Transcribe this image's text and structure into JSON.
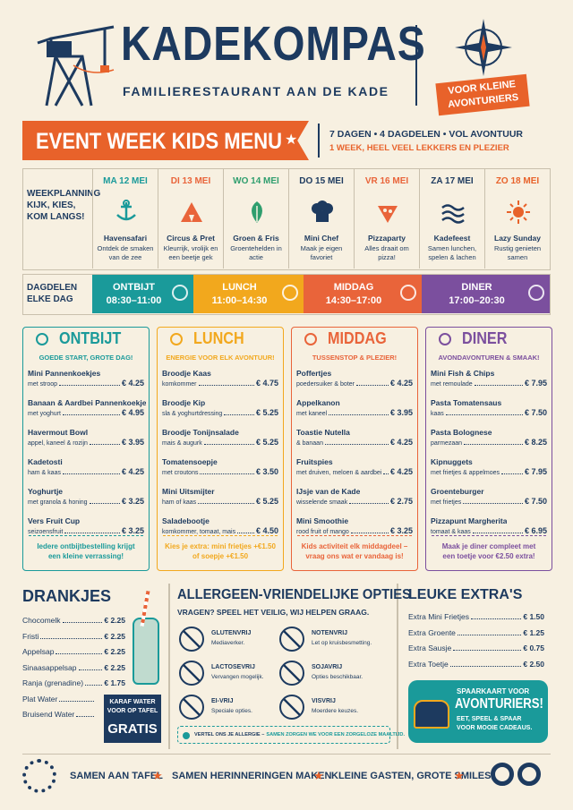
{
  "header": {
    "brand": "KADEKOMPAS",
    "tagline": "FAMILIERESTAURANT AAN DE KADE",
    "badge": [
      "VOOR KLEINE",
      "AVONTURIERS"
    ]
  },
  "banner": {
    "title": "EVENT WEEK KIDS MENU",
    "info": "7 DAGEN • 4 DAGDELEN • VOL AVONTUUR",
    "subinfo": "1 WEEK, HEEL VEEL LEKKERS EN PLEZIER"
  },
  "week": {
    "label": [
      "WEEKPLANNING",
      "KIJK, KIES,",
      "KOM LANGS!"
    ],
    "days": [
      {
        "date": "MA 12 MEI",
        "title": "Havensafari",
        "desc": "Ontdek de smaken van de zee"
      },
      {
        "date": "DI 13 MEI",
        "title": "Circus & Pret",
        "desc": "Kleurrijk, vrolijk en een beetje gek"
      },
      {
        "date": "WO 14 MEI",
        "title": "Groen & Fris",
        "desc": "Groentehelden in actie"
      },
      {
        "date": "DO 15 MEI",
        "title": "Mini Chef",
        "desc": "Maak je eigen favoriet"
      },
      {
        "date": "VR 16 MEI",
        "title": "Pizzaparty",
        "desc": "Alles draait om pizza!"
      },
      {
        "date": "ZA 17 MEI",
        "title": "Kadefeest",
        "desc": "Samen lunchen, spelen & lachen"
      },
      {
        "date": "ZO 18 MEI",
        "title": "Lazy Sunday",
        "desc": "Rustig genieten samen"
      }
    ]
  },
  "dayparts": {
    "label": [
      "DAGDELEN",
      "ELKE DAG"
    ],
    "parts": [
      {
        "name": "ONTBIJT",
        "time": "08:30–11:00"
      },
      {
        "name": "LUNCH",
        "time": "11:00–14:30"
      },
      {
        "name": "MIDDAG",
        "time": "14:30–17:00"
      },
      {
        "name": "DINER",
        "time": "17:00–20:30"
      }
    ]
  },
  "menus": [
    {
      "title": "ONTBIJT",
      "subtitle": "GOEDE START, GROTE DAG!",
      "items": [
        {
          "name": "Mini Pannenkoekjes",
          "desc": "met stroop",
          "price": "€ 4.25"
        },
        {
          "name": "Banaan & Aardbei Pannenkoekjes",
          "desc": "met yoghurt",
          "price": "€ 4.95"
        },
        {
          "name": "Havermout Bowl",
          "desc": "appel, kaneel & rozijn",
          "price": "€ 3.95"
        },
        {
          "name": "Kadetosti",
          "desc": "ham & kaas",
          "price": "€ 4.25"
        },
        {
          "name": "Yoghurtje",
          "desc": "met granola & honing",
          "price": "€ 3.25"
        },
        {
          "name": "Vers Fruit Cup",
          "desc": "seizoensfruit",
          "price": "€ 3.25"
        }
      ],
      "note": [
        "Iedere ontbijtbestelling krijgt",
        "een kleine verrassing!"
      ]
    },
    {
      "title": "LUNCH",
      "subtitle": "ENERGIE VOOR ELK AVONTUUR!",
      "items": [
        {
          "name": "Broodje Kaas",
          "desc": "komkommer",
          "price": "€ 4.75"
        },
        {
          "name": "Broodje Kip",
          "desc": "sla & yoghurtdressing",
          "price": "€ 5.25"
        },
        {
          "name": "Broodje Tonijnsalade",
          "desc": "mais & augurk",
          "price": "€ 5.25"
        },
        {
          "name": "Tomatensoepje",
          "desc": "met croutons",
          "price": "€ 3.50"
        },
        {
          "name": "Mini Uitsmijter",
          "desc": "ham of kaas",
          "price": "€ 5.25"
        },
        {
          "name": "Saladebootje",
          "desc": "komkommer, tomaat, mais",
          "price": "€ 4.50"
        }
      ],
      "note": [
        "Kies je extra: mini frietjes +€1.50",
        "of soepje +€1.50"
      ]
    },
    {
      "title": "MIDDAG",
      "subtitle": "TUSSENSTOP & PLEZIER!",
      "items": [
        {
          "name": "Poffertjes",
          "desc": "poedersuiker & boter",
          "price": "€ 4.25"
        },
        {
          "name": "Appelkanon",
          "desc": "met kaneel",
          "price": "€ 3.95"
        },
        {
          "name": "Toastie Nutella",
          "desc": "& banaan",
          "price": "€ 4.25"
        },
        {
          "name": "Fruitspies",
          "desc": "met druiven, meloen & aardbei",
          "price": "€ 4.25"
        },
        {
          "name": "IJsje van de Kade",
          "desc": "wisselende smaak",
          "price": "€ 2.75"
        },
        {
          "name": "Mini Smoothie",
          "desc": "rood fruit of mango",
          "price": "€ 3.25"
        }
      ],
      "note": [
        "Kids activiteit elk middagdeel –",
        "vraag ons wat er vandaag is!"
      ]
    },
    {
      "title": "DINER",
      "subtitle": "AVONDAVONTUREN & SMAAK!",
      "items": [
        {
          "name": "Mini Fish & Chips",
          "desc": "met remoulade",
          "price": "€ 7.95"
        },
        {
          "name": "Pasta Tomatensaus",
          "desc": "kaas",
          "price": "€ 7.50"
        },
        {
          "name": "Pasta Bolognese",
          "desc": "parmezaan",
          "price": "€ 8.25"
        },
        {
          "name": "Kipnuggets",
          "desc": "met frietjes & appelmoes",
          "price": "€ 7.95"
        },
        {
          "name": "Groenteburger",
          "desc": "met frietjes",
          "price": "€ 7.50"
        },
        {
          "name": "Pizzapunt Margherita",
          "desc": "tomaat & kaas",
          "price": "€ 6.95"
        }
      ],
      "note": [
        "Maak je diner compleet met",
        "een toetje voor €2.50 extra!"
      ]
    }
  ],
  "drinks": {
    "title": "DRANKJES",
    "items": [
      {
        "name": "Chocomelk",
        "price": "€ 2.25"
      },
      {
        "name": "Fristi",
        "price": "€ 2.25"
      },
      {
        "name": "Appelsap",
        "price": "€ 2.25"
      },
      {
        "name": "Sinaasappelsap",
        "price": "€ 2.25"
      },
      {
        "name": "Ranja (grenadine)",
        "price": "€ 1.75"
      },
      {
        "name": "Plat Water"
      },
      {
        "name": "Bruisend Water"
      }
    ],
    "badge": [
      "KARAF WATER",
      "VOOR OP TAFEL"
    ],
    "badge_strong": "GRATIS"
  },
  "allergens": {
    "title": "ALLERGEEN-VRIENDELIJKE OPTIES",
    "subtitle": "VRAGEN? SPEEL HET VEILIG, WIJ HELPEN GRAAG.",
    "options": [
      {
        "name": "GLUTENVRIJ",
        "desc": "Mediaverker."
      },
      {
        "name": "NOTENVRIJ",
        "desc": "Let op kruisbesmetting."
      },
      {
        "name": "LACTOSEVRIJ",
        "desc": "Vervangen mogelijk."
      },
      {
        "name": "SOJAVRIJ",
        "desc": "Opties beschikbaar."
      },
      {
        "name": "EI-VRIJ",
        "desc": "Speciale opties."
      },
      {
        "name": "VISVRIJ",
        "desc": "Moerdere keuzes."
      }
    ],
    "footer": [
      "VERTEL ONS JE ALLERGIE –",
      "SAMEN ZORGEN WE VOOR EEN ZORGELOZE MAALTIJD."
    ]
  },
  "extras": {
    "title": "LEUKE EXTRA'S",
    "items": [
      {
        "name": "Extra Mini Frietjes",
        "price": "€ 1.50"
      },
      {
        "name": "Extra Groente",
        "price": "€ 1.25"
      },
      {
        "name": "Extra Sausje",
        "price": "€ 0.75"
      },
      {
        "name": "Extra Toetje",
        "price": "€ 2.50"
      }
    ],
    "card": {
      "kicker": "SPAARKAART VOOR",
      "title": "AVONTURIERS!",
      "text": [
        "EET, SPEEL & SPAAR",
        "VOOR MOOIE CADEAUS."
      ]
    }
  },
  "footer": [
    "SAMEN AAN TAFEL",
    "SAMEN HERINNERINGEN MAKEN",
    "KLEINE GASTEN, GROTE SMILES"
  ]
}
